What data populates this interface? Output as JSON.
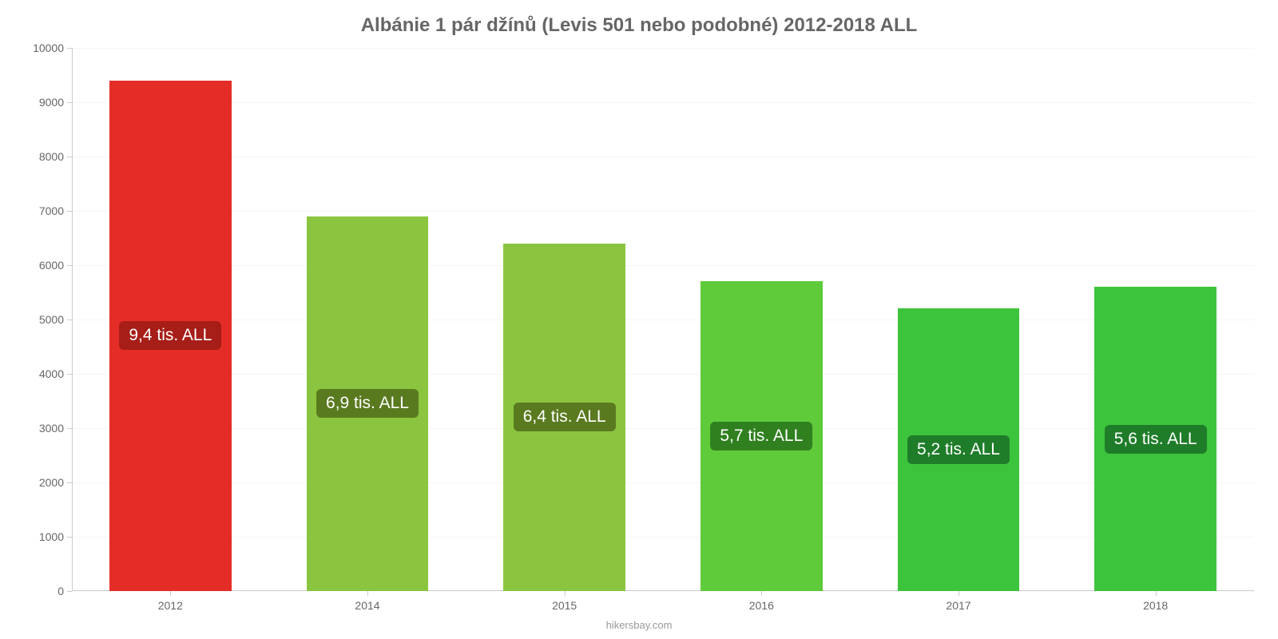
{
  "chart": {
    "type": "bar",
    "title": "Albánie 1 pár džínů (Levis 501 nebo podobné) 2012-2018 ALL",
    "title_fontsize": 24,
    "title_color": "#666666",
    "background_color": "#ffffff",
    "grid_color": "#f5f5f5",
    "axis_color": "#cccccc",
    "tick_label_color": "#666666",
    "tick_fontsize": 14,
    "ylim": [
      0,
      10000
    ],
    "ytick_step": 1000,
    "y_ticks": [
      "0",
      "1000",
      "2000",
      "3000",
      "4000",
      "5000",
      "6000",
      "7000",
      "8000",
      "9000",
      "10000"
    ],
    "categories": [
      "2012",
      "2014",
      "2015",
      "2016",
      "2017",
      "2018"
    ],
    "values": [
      9400,
      6900,
      6400,
      5700,
      5200,
      5600
    ],
    "bar_colors": [
      "#e52d27",
      "#8bc53f",
      "#8bc53f",
      "#5fcb3a",
      "#3dc43d",
      "#3dc43d"
    ],
    "bar_labels": [
      "9,4 tis. ALL",
      "6,9 tis. ALL",
      "6,4 tis. ALL",
      "5,7 tis. ALL",
      "5,2 tis. ALL",
      "5,6 tis. ALL"
    ],
    "label_bg_colors": [
      "#a71d18",
      "#5a7a1f",
      "#5a7a1f",
      "#308020",
      "#1f7d2a",
      "#1f7d2a"
    ],
    "label_fontsize": 21,
    "label_color": "#ffffff",
    "bar_width_ratio": 0.62,
    "attribution": "hikersbay.com",
    "attribution_color": "#999999"
  }
}
